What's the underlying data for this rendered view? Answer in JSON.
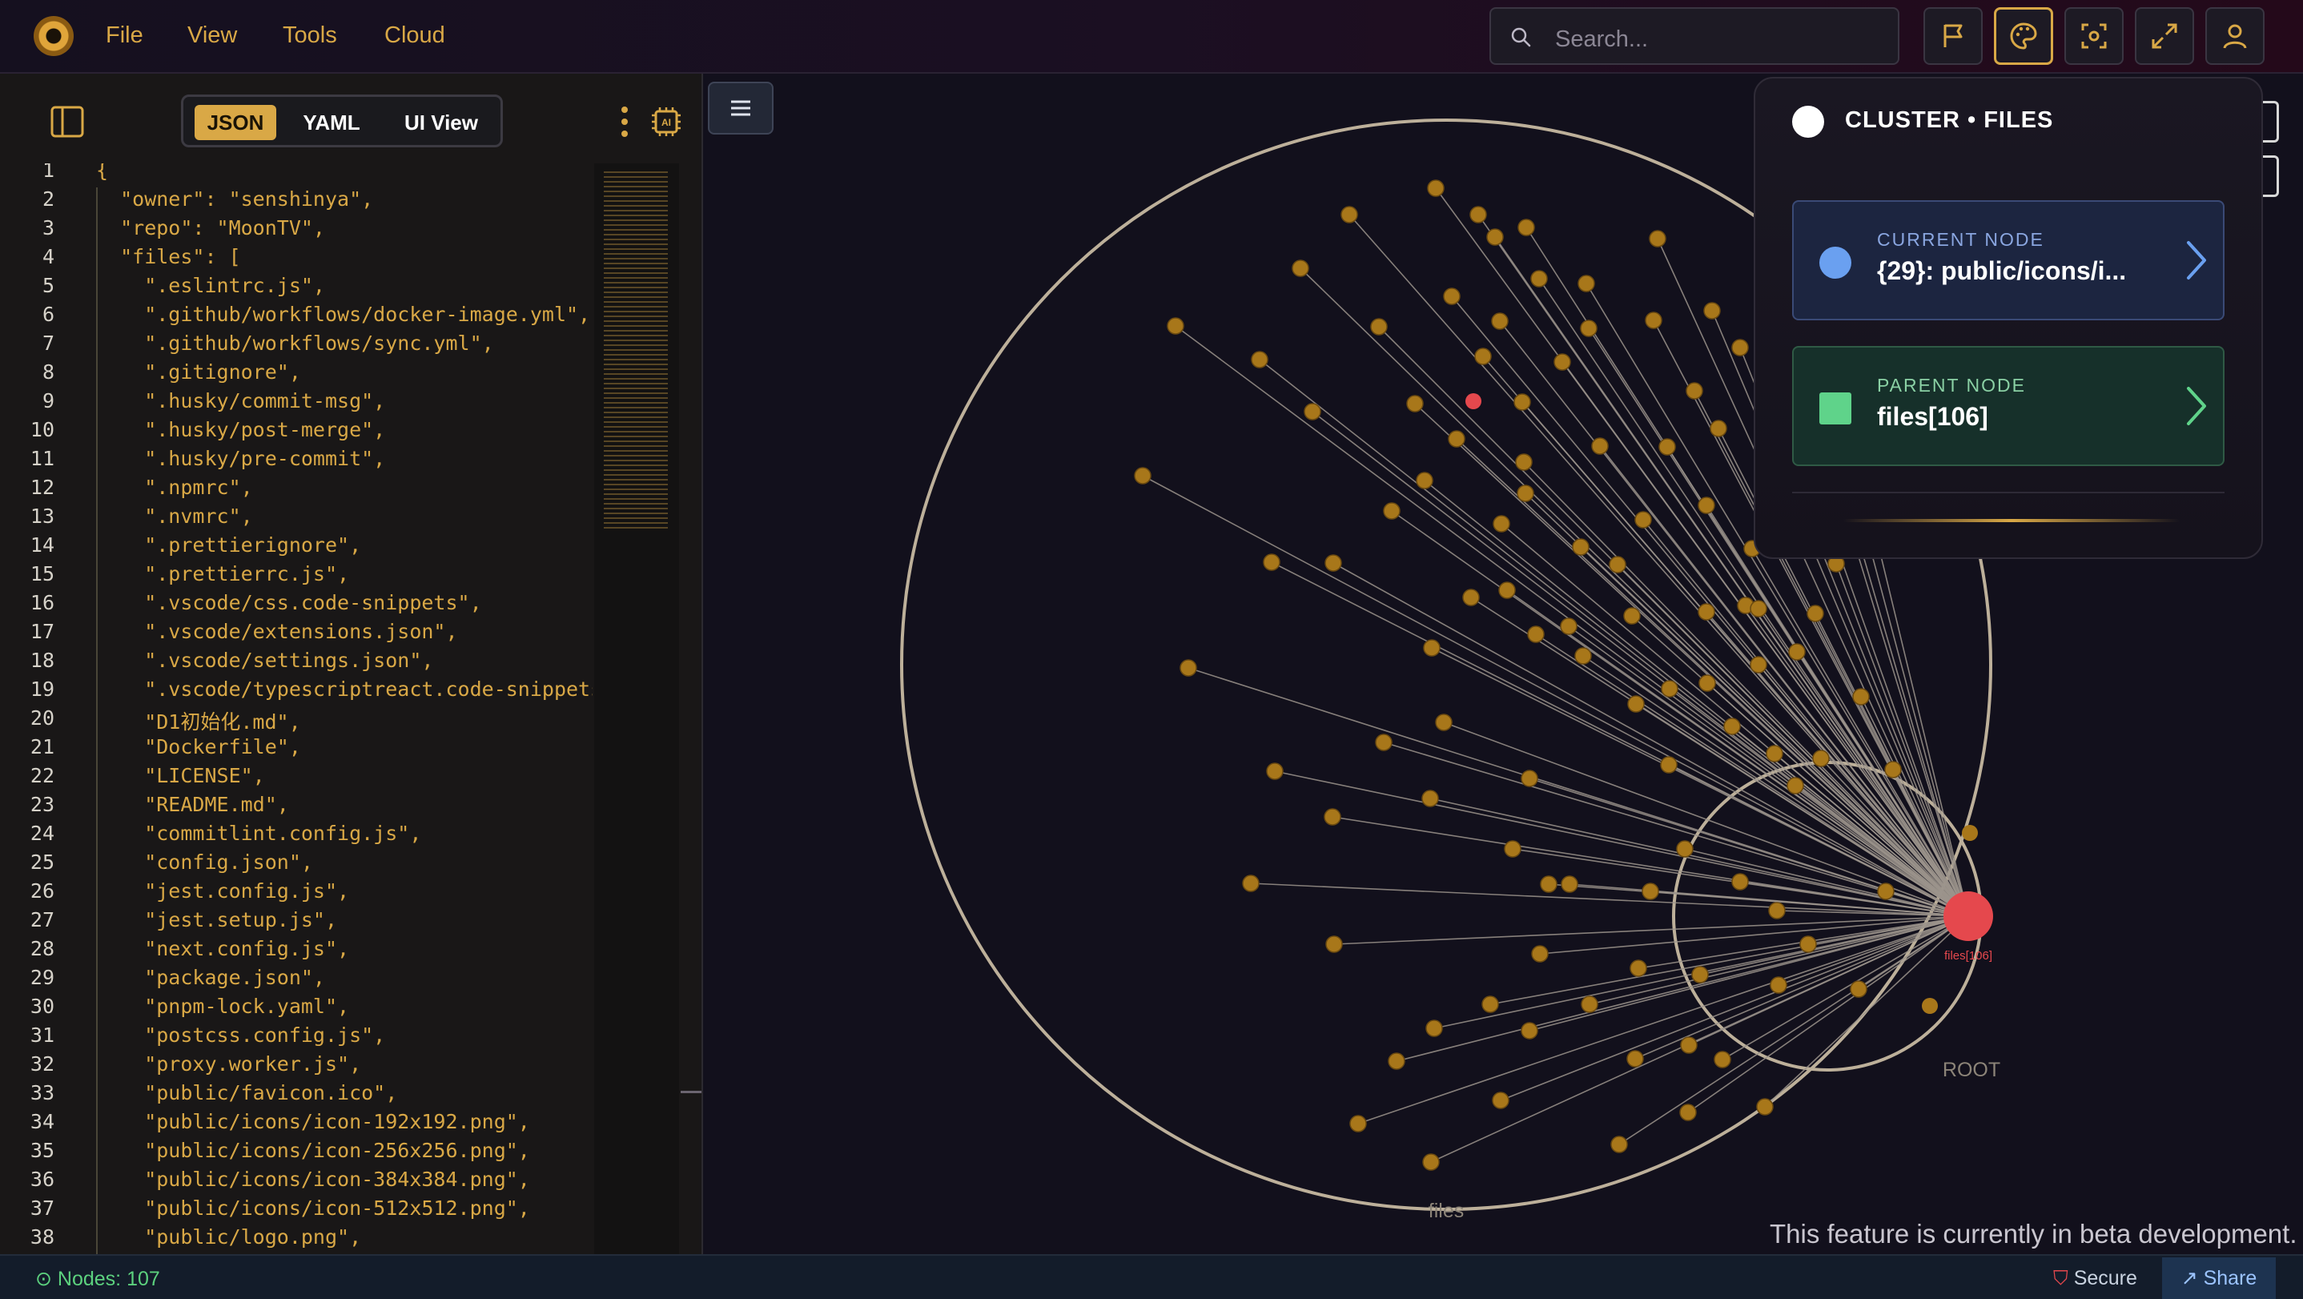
{
  "menu": [
    "File",
    "View",
    "Tools",
    "Cloud"
  ],
  "search": {
    "placeholder": "Search..."
  },
  "toolbar_icons": [
    "flag-icon",
    "palette-icon",
    "focus-icon",
    "expand-icon",
    "user-icon"
  ],
  "editor": {
    "tabs": [
      "JSON",
      "YAML",
      "UI View"
    ],
    "active_tab": "JSON",
    "lines": [
      "{",
      "  \"owner\": \"senshinya\",",
      "  \"repo\": \"MoonTV\",",
      "  \"files\": [",
      "    \".eslintrc.js\",",
      "    \".github/workflows/docker-image.yml\",",
      "    \".github/workflows/sync.yml\",",
      "    \".gitignore\",",
      "    \".husky/commit-msg\",",
      "    \".husky/post-merge\",",
      "    \".husky/pre-commit\",",
      "    \".npmrc\",",
      "    \".nvmrc\",",
      "    \".prettierignore\",",
      "    \".prettierrc.js\",",
      "    \".vscode/css.code-snippets\",",
      "    \".vscode/extensions.json\",",
      "    \".vscode/settings.json\",",
      "    \".vscode/typescriptreact.code-snippets\"",
      "    \"D1初始化.md\",",
      "    \"Dockerfile\",",
      "    \"LICENSE\",",
      "    \"README.md\",",
      "    \"commitlint.config.js\",",
      "    \"config.json\",",
      "    \"jest.config.js\",",
      "    \"jest.setup.js\",",
      "    \"next.config.js\",",
      "    \"package.json\",",
      "    \"pnpm-lock.yaml\",",
      "    \"postcss.config.js\",",
      "    \"proxy.worker.js\",",
      "    \"public/favicon.ico\",",
      "    \"public/icons/icon-192x192.png\",",
      "    \"public/icons/icon-256x256.png\",",
      "    \"public/icons/icon-384x384.png\",",
      "    \"public/icons/icon-512x512.png\",",
      "    \"public/logo.png\","
    ]
  },
  "graph": {
    "cluster_label_files": "files",
    "cluster_label_root": "ROOT",
    "hub_label": "files[106]"
  },
  "cluster_panel": {
    "title": "CLUSTER • FILES",
    "current_node": {
      "caption": "CURRENT NODE",
      "value": "{29}: public/icons/i..."
    },
    "parent_node": {
      "caption": "PARENT NODE",
      "value": "files[106]"
    }
  },
  "beta_notice": "This feature is currently in beta development.",
  "status": {
    "nodes": "Nodes: 107",
    "secure": "Secure",
    "share": "Share"
  },
  "colors": {
    "accent": "#d9a846",
    "hub": "#e5484d",
    "leaf": "#a8771a",
    "current_node": "#6aa0f0",
    "parent_node": "#5fd38a"
  }
}
